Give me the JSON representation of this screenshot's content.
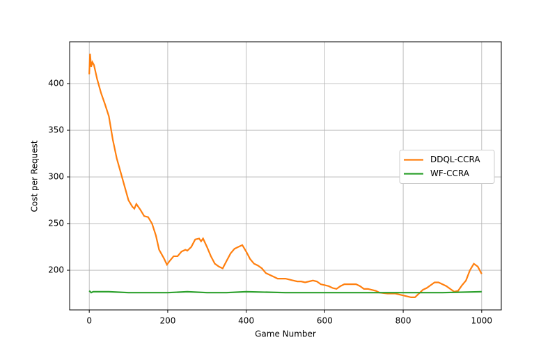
{
  "chart_data": {
    "type": "line",
    "xlabel": "Game Number",
    "ylabel": "Cost per Request",
    "xlim": [
      -50,
      1050
    ],
    "ylim": [
      157.5,
      444.8
    ],
    "xticks": [
      0,
      200,
      400,
      600,
      800,
      1000
    ],
    "yticks": [
      200,
      250,
      300,
      350,
      400
    ],
    "grid": true,
    "legend": "center right",
    "series": [
      {
        "name": "DDQL-CCRA",
        "color": "#ff7f0e",
        "x": [
          0,
          2,
          5,
          8,
          12,
          20,
          30,
          40,
          50,
          60,
          70,
          80,
          90,
          100,
          110,
          115,
          120,
          130,
          140,
          150,
          160,
          170,
          178,
          190,
          198,
          205,
          215,
          225,
          235,
          245,
          250,
          260,
          270,
          280,
          285,
          290,
          300,
          310,
          320,
          330,
          340,
          350,
          360,
          370,
          380,
          390,
          400,
          410,
          420,
          430,
          440,
          450,
          460,
          470,
          480,
          490,
          500,
          510,
          520,
          530,
          540,
          550,
          560,
          570,
          580,
          590,
          600,
          610,
          620,
          630,
          640,
          650,
          660,
          670,
          680,
          690,
          700,
          710,
          720,
          730,
          740,
          760,
          780,
          800,
          810,
          820,
          830,
          840,
          850,
          860,
          870,
          880,
          890,
          900,
          910,
          920,
          930,
          940,
          950,
          960,
          970,
          980,
          990,
          1000
        ],
        "values": [
          410,
          432,
          418,
          423,
          420,
          405,
          390,
          378,
          365,
          340,
          320,
          305,
          290,
          275,
          268,
          266,
          271,
          265,
          258,
          257,
          250,
          237,
          222,
          213,
          206,
          210,
          215,
          215,
          220,
          222,
          221,
          225,
          233,
          234,
          231,
          234,
          225,
          215,
          207,
          204,
          202,
          210,
          218,
          223,
          225,
          227,
          220,
          212,
          207,
          205,
          202,
          197,
          195,
          193,
          191,
          191,
          191,
          190,
          189,
          188,
          188,
          187,
          188,
          189,
          188,
          185,
          184,
          183,
          181,
          180,
          183,
          185,
          185,
          185,
          185,
          183,
          180,
          180,
          179,
          178,
          176,
          175,
          175,
          173,
          172,
          171,
          171,
          175,
          179,
          181,
          184,
          187,
          187,
          185,
          183,
          180,
          177,
          178,
          184,
          189,
          200,
          207,
          204,
          196
        ]
      },
      {
        "name": "WF-CCRA",
        "color": "#2ca02c",
        "x": [
          0,
          5,
          10,
          50,
          100,
          200,
          250,
          300,
          350,
          400,
          500,
          600,
          700,
          800,
          900,
          1000
        ],
        "values": [
          178,
          176,
          177,
          177,
          176,
          176,
          177,
          176,
          176,
          177,
          176,
          176,
          176,
          176,
          176,
          177
        ]
      }
    ]
  }
}
